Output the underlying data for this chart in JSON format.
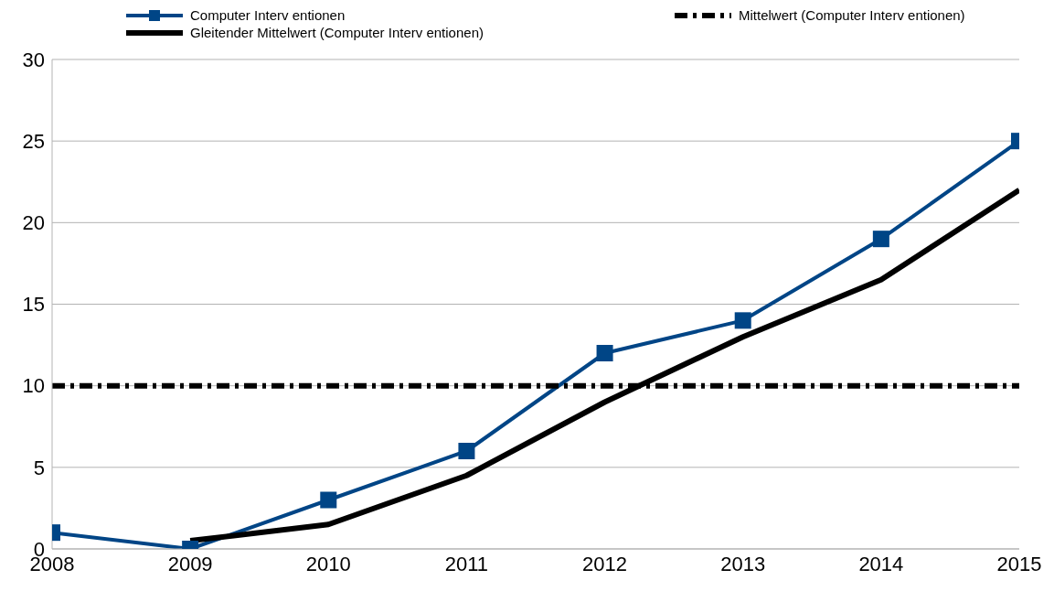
{
  "chart_data": {
    "type": "line",
    "x": [
      2008,
      2009,
      2010,
      2011,
      2012,
      2013,
      2014,
      2015
    ],
    "xlim": [
      2008,
      2015
    ],
    "xticks": [
      2008,
      2009,
      2010,
      2011,
      2012,
      2013,
      2014,
      2015
    ],
    "ylim": [
      0,
      30
    ],
    "yticks": [
      0,
      5,
      10,
      15,
      20,
      25,
      30
    ],
    "grid": "y",
    "legend": "top",
    "series": [
      {
        "name": "Computer Interv entionen",
        "color": "#004586",
        "marker": "square",
        "line_style": "solid",
        "values": [
          1,
          0,
          3,
          6,
          12,
          14,
          19,
          25
        ]
      },
      {
        "name": "Mittelwert (Computer Interv entionen)",
        "color": "#000000",
        "marker": "none",
        "line_style": "dashed",
        "values": [
          10,
          10,
          10,
          10,
          10,
          10,
          10,
          10
        ]
      },
      {
        "name": "Gleitender Mittelwert (Computer Interv entionen)",
        "color": "#000000",
        "marker": "none",
        "line_style": "solid",
        "values": [
          null,
          0.5,
          1.5,
          4.5,
          9,
          13,
          16.5,
          22
        ]
      }
    ]
  }
}
